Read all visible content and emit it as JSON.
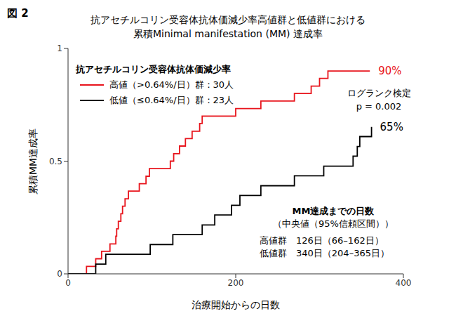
{
  "chart_data": {
    "type": "step_line",
    "figure_label": "図 2",
    "title": [
      "抗アセチルコリン受容体抗体価減少率高値群と低値群における",
      "累積Minimal manifestation (MM) 達成率"
    ],
    "x_label": "治療開始からの日数",
    "y_label": "累積MM達成率",
    "xlim": [
      0,
      400
    ],
    "xticks": [
      0,
      200,
      400
    ],
    "ylim": [
      0,
      1
    ],
    "yticks": [
      0,
      0.5,
      1
    ],
    "grid": false,
    "legend": "top left",
    "legend_title": "抗アセチルコリン受容体抗体価減少率",
    "series": [
      {
        "name": "高値（>0.64%/日）群：30人",
        "color": "#e8141c",
        "end_label": "90%",
        "x": [
          0,
          22,
          33,
          40,
          50,
          57,
          58,
          60,
          63,
          65,
          68,
          72,
          85,
          93,
          97,
          122,
          126,
          133,
          140,
          148,
          157,
          160,
          200,
          230,
          270,
          290,
          300,
          310,
          360
        ],
        "values": [
          0,
          0.033,
          0.067,
          0.1,
          0.133,
          0.167,
          0.2,
          0.233,
          0.267,
          0.3,
          0.333,
          0.367,
          0.4,
          0.433,
          0.467,
          0.5,
          0.533,
          0.567,
          0.6,
          0.633,
          0.667,
          0.7,
          0.733,
          0.767,
          0.8,
          0.833,
          0.867,
          0.9,
          0.9
        ]
      },
      {
        "name": "低値（≤0.64%/日）群：23人",
        "color": "#000000",
        "end_label": "65%",
        "x": [
          0,
          33,
          45,
          98,
          125,
          160,
          175,
          195,
          205,
          230,
          270,
          305,
          340,
          345,
          348,
          362
        ],
        "values": [
          0,
          0.043,
          0.087,
          0.13,
          0.174,
          0.217,
          0.261,
          0.304,
          0.348,
          0.391,
          0.435,
          0.478,
          0.522,
          0.565,
          0.609,
          0.652
        ]
      }
    ],
    "annotations": {
      "test": [
        "ログランク検定",
        "p = 0.002"
      ],
      "median_box": [
        "MM達成までの日数",
        "（中央値（95%信頼区間））",
        "高値群　126日（66–162日）",
        "低値群　340日（204–365日）"
      ]
    }
  }
}
